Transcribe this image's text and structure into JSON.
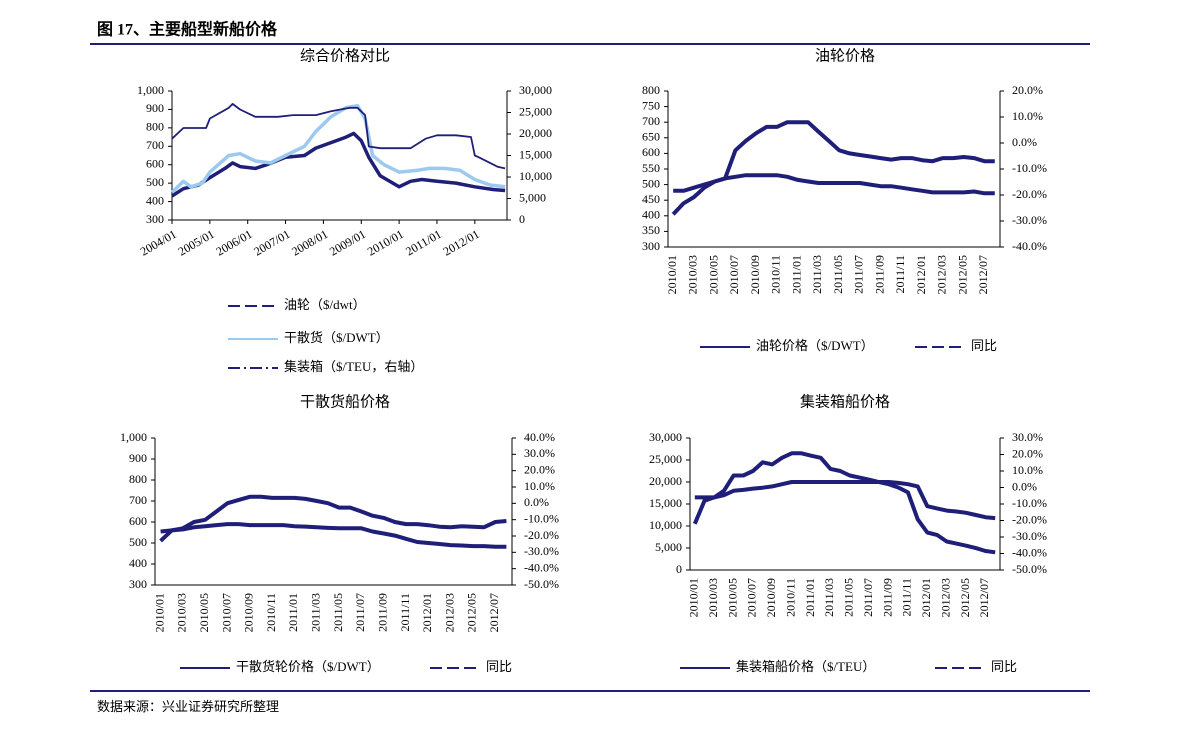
{
  "title": "图 17、主要船型新船价格",
  "source": "数据来源：兴业证券研究所整理",
  "chart_data": [
    {
      "type": "line",
      "title": "综合价格对比",
      "xlim": [
        2004,
        2012.85
      ],
      "xticks": [
        {
          "value": 2004,
          "label": "2004/01"
        },
        {
          "value": 2005,
          "label": "2005/01"
        },
        {
          "value": 2006,
          "label": "2006/01"
        },
        {
          "value": 2007,
          "label": "2007/01"
        },
        {
          "value": 2008,
          "label": "2008/01"
        },
        {
          "value": 2009,
          "label": "2009/01"
        },
        {
          "value": 2010,
          "label": "2010/01"
        },
        {
          "value": 2011,
          "label": "2011/01"
        },
        {
          "value": 2012,
          "label": "2012/01"
        }
      ],
      "ylim": [
        300,
        1000
      ],
      "yticks": [
        {
          "value": 1000,
          "label": "1,000"
        },
        900,
        800,
        700,
        600,
        500,
        400,
        300
      ],
      "y2lim": [
        0,
        30000
      ],
      "y2ticks": [
        {
          "value": 30000,
          "label": "30,000"
        },
        {
          "value": 25000,
          "label": "25,000"
        },
        {
          "value": 20000,
          "label": "20,000"
        },
        {
          "value": 15000,
          "label": "15,000"
        },
        {
          "value": 10000,
          "label": "10,000"
        },
        {
          "value": 5000,
          "label": "5,000"
        },
        0
      ],
      "legend": "bottom",
      "series": [
        {
          "name": "油轮（$/dwt）",
          "color": "#1f1f7a",
          "dash": "dash",
          "width": 3.5,
          "x": [
            2004.0,
            2004.3,
            2004.7,
            2005.0,
            2005.4,
            2005.6,
            2005.8,
            2006.2,
            2006.5,
            2007.0,
            2007.5,
            2007.8,
            2008.2,
            2008.6,
            2008.8,
            2009.0,
            2009.2,
            2009.5,
            2010.0,
            2010.3,
            2010.6,
            2011.0,
            2011.5,
            2012.0,
            2012.5,
            2012.8
          ],
          "values": [
            430,
            470,
            490,
            530,
            580,
            610,
            590,
            580,
            600,
            640,
            650,
            690,
            720,
            750,
            770,
            730,
            640,
            540,
            480,
            510,
            520,
            510,
            500,
            480,
            465,
            460
          ]
        },
        {
          "name": "干散货（$/DWT）",
          "color": "#9cc9ef",
          "dash": "solid",
          "width": 3.5,
          "x": [
            2004.0,
            2004.3,
            2004.5,
            2004.8,
            2005.0,
            2005.5,
            2005.8,
            2006.2,
            2006.6,
            2007.0,
            2007.5,
            2007.8,
            2008.2,
            2008.6,
            2008.9,
            2009.1,
            2009.3,
            2009.6,
            2010.0,
            2010.5,
            2010.8,
            2011.2,
            2011.6,
            2012.0,
            2012.4,
            2012.8
          ],
          "values": [
            450,
            510,
            480,
            500,
            560,
            650,
            660,
            620,
            610,
            650,
            700,
            780,
            860,
            910,
            920,
            850,
            650,
            600,
            560,
            570,
            580,
            580,
            570,
            520,
            490,
            480
          ]
        },
        {
          "name": "集装箱（$/TEU，右轴）",
          "color": "#1f1f7a",
          "dash": "dashdot",
          "width": 1.8,
          "axis": "y2",
          "x": [
            2004.0,
            2004.3,
            2004.9,
            2005.0,
            2005.5,
            2005.6,
            2005.8,
            2006.2,
            2006.8,
            2007.2,
            2007.8,
            2008.2,
            2008.7,
            2008.9,
            2009.1,
            2009.2,
            2009.5,
            2010.3,
            2010.7,
            2011.0,
            2011.5,
            2011.9,
            2012.0,
            2012.1,
            2012.6,
            2012.8
          ],
          "values": [
            18900,
            21400,
            21400,
            23600,
            26100,
            27000,
            25700,
            24000,
            24000,
            24400,
            24400,
            25300,
            26100,
            26100,
            24400,
            17100,
            16700,
            16700,
            18900,
            19700,
            19700,
            19300,
            15000,
            14600,
            12400,
            12000
          ]
        }
      ]
    },
    {
      "type": "line",
      "title": "油轮价格",
      "categories": [
        "2010/01",
        null,
        "2010/03",
        null,
        "2010/05",
        null,
        "2010/07",
        null,
        "2010/09",
        null,
        "2010/11",
        null,
        "2011/01",
        null,
        "2011/03",
        null,
        "2011/05",
        null,
        "2011/07",
        null,
        "2011/09",
        null,
        "2011/11",
        null,
        "2012/01",
        null,
        "2012/03",
        null,
        "2012/05",
        null,
        "2012/07",
        null
      ],
      "ylim": [
        300,
        800
      ],
      "yticks": [
        800,
        750,
        700,
        650,
        600,
        550,
        500,
        450,
        400,
        350,
        300
      ],
      "y2lim": [
        -40,
        20
      ],
      "y2ticks": [
        {
          "value": 20,
          "label": "20.0%"
        },
        {
          "value": 10,
          "label": "10.0%"
        },
        {
          "value": 0,
          "label": "0.0%"
        },
        {
          "value": -10,
          "label": "-10.0%"
        },
        {
          "value": -20,
          "label": "-20.0%"
        },
        {
          "value": -30,
          "label": "-30.0%"
        },
        {
          "value": -40,
          "label": "-40.0%"
        }
      ],
      "legend": "bottom",
      "series": [
        {
          "name": "油轮价格（$/DWT）",
          "color": "#1f1f7a",
          "dash": "solid",
          "width": 4,
          "values": [
            480,
            480,
            490,
            500,
            510,
            520,
            525,
            530,
            530,
            530,
            530,
            525,
            515,
            510,
            505,
            505,
            505,
            505,
            505,
            500,
            495,
            495,
            490,
            485,
            480,
            475,
            475,
            475,
            475,
            478,
            472,
            472
          ]
        },
        {
          "name": "同比",
          "color": "#1f1f7a",
          "dash": "dash",
          "width": 4,
          "axis": "y2",
          "values": [
            -27.4,
            -23.2,
            -20.8,
            -17.2,
            -14.8,
            -13.6,
            -2.8,
            0.8,
            3.8,
            6.2,
            6.2,
            8,
            8,
            8,
            4.4,
            0.8,
            -2.8,
            -4,
            -4.6,
            -5.2,
            -5.8,
            -6.4,
            -5.8,
            -5.8,
            -6.6,
            -7,
            -5.8,
            -5.8,
            -5.4,
            -5.8,
            -7,
            -7
          ]
        }
      ]
    },
    {
      "type": "line",
      "title": "干散货船价格",
      "categories": [
        "2010/01",
        null,
        "2010/03",
        null,
        "2010/05",
        null,
        "2010/07",
        null,
        "2010/09",
        null,
        "2010/11",
        null,
        "2011/01",
        null,
        "2011/03",
        null,
        "2011/05",
        null,
        "2011/07",
        null,
        "2011/09",
        null,
        "2011/11",
        null,
        "2012/01",
        null,
        "2012/03",
        null,
        "2012/05",
        null,
        "2012/07",
        null
      ],
      "ylim": [
        300,
        1000
      ],
      "yticks": [
        {
          "value": 1000,
          "label": "1,000"
        },
        900,
        800,
        700,
        600,
        500,
        400,
        300
      ],
      "y2lim": [
        -50,
        40
      ],
      "y2ticks": [
        {
          "value": 40,
          "label": "40.0%"
        },
        {
          "value": 30,
          "label": "30.0%"
        },
        {
          "value": 20,
          "label": "20.0%"
        },
        {
          "value": 10,
          "label": "10.0%"
        },
        {
          "value": 0,
          "label": "0.0%"
        },
        {
          "value": -10,
          "label": "-10.0%"
        },
        {
          "value": -20,
          "label": "-20.0%"
        },
        {
          "value": -30,
          "label": "-30.0%"
        },
        {
          "value": -40,
          "label": "-40.0%"
        },
        {
          "value": -50,
          "label": "-50.0%"
        }
      ],
      "legend": "bottom",
      "series": [
        {
          "name": "干散货轮价格（$/DWT）",
          "color": "#1f1f7a",
          "dash": "solid",
          "width": 4,
          "values": [
            555,
            560,
            565,
            575,
            580,
            585,
            590,
            590,
            585,
            585,
            585,
            585,
            580,
            578,
            575,
            572,
            570,
            570,
            570,
            555,
            545,
            535,
            520,
            505,
            500,
            495,
            490,
            488,
            485,
            485,
            482,
            482
          ]
        },
        {
          "name": "同比",
          "color": "#1f1f7a",
          "dash": "dash",
          "width": 4,
          "axis": "y2",
          "values": [
            -23,
            -16.6,
            -15.3,
            -11.4,
            -10.1,
            -5,
            0.1,
            2.1,
            4,
            4,
            3.3,
            3.3,
            3.3,
            2.7,
            1.4,
            0.1,
            -2.6,
            -2.6,
            -5,
            -7.6,
            -8.9,
            -11.4,
            -12.7,
            -12.7,
            -13.4,
            -14.3,
            -14.6,
            -14,
            -14.3,
            -14.6,
            -11.4,
            -10.8
          ]
        }
      ]
    },
    {
      "type": "line",
      "title": "集装箱船价格",
      "categories": [
        "2010/01",
        null,
        "2010/03",
        null,
        "2010/05",
        null,
        "2010/07",
        null,
        "2010/09",
        null,
        "2010/11",
        null,
        "2011/01",
        null,
        "2011/03",
        null,
        "2011/05",
        null,
        "2011/07",
        null,
        "2011/09",
        null,
        "2011/11",
        null,
        "2012/01",
        null,
        "2012/03",
        null,
        "2012/05",
        null,
        "2012/07",
        null
      ],
      "ylim": [
        0,
        30000
      ],
      "yticks": [
        {
          "value": 30000,
          "label": "30,000"
        },
        {
          "value": 25000,
          "label": "25,000"
        },
        {
          "value": 20000,
          "label": "20,000"
        },
        {
          "value": 15000,
          "label": "15,000"
        },
        {
          "value": 10000,
          "label": "10,000"
        },
        {
          "value": 5000,
          "label": "5,000"
        },
        0
      ],
      "y2lim": [
        -50,
        30
      ],
      "y2ticks": [
        {
          "value": 30,
          "label": "30.0%"
        },
        {
          "value": 20,
          "label": "20.0%"
        },
        {
          "value": 10,
          "label": "10.0%"
        },
        {
          "value": 0,
          "label": "0.0%"
        },
        {
          "value": -10,
          "label": "-10.0%"
        },
        {
          "value": -20,
          "label": "-20.0%"
        },
        {
          "value": -30,
          "label": "-30.0%"
        },
        {
          "value": -40,
          "label": "-40.0%"
        },
        {
          "value": -50,
          "label": "-50.0%"
        }
      ],
      "legend": "bottom",
      "series": [
        {
          "name": "集装箱船价格（$/TEU）",
          "color": "#1f1f7a",
          "dash": "solid",
          "width": 4,
          "values": [
            16500,
            16500,
            16500,
            17000,
            18000,
            18200,
            18500,
            18700,
            19000,
            19500,
            20000,
            20000,
            20000,
            20000,
            20000,
            20000,
            20000,
            20000,
            20000,
            20000,
            20000,
            19800,
            19500,
            19000,
            14500,
            14000,
            13500,
            13300,
            13000,
            12500,
            12000,
            11800
          ]
        },
        {
          "name": "同比",
          "color": "#1f1f7a",
          "dash": "dash",
          "width": 4,
          "axis": "y2",
          "values": [
            -22,
            -8,
            -6,
            -2,
            7.3,
            7.3,
            10,
            15.3,
            14,
            18,
            20.7,
            20.7,
            19.3,
            18,
            11.3,
            10,
            7.3,
            6,
            4.7,
            3.3,
            2,
            0,
            -3,
            -19.3,
            -27.3,
            -28.7,
            -32.7,
            -34,
            -35.3,
            -36.7,
            -38.5,
            -39.3
          ]
        }
      ]
    }
  ]
}
